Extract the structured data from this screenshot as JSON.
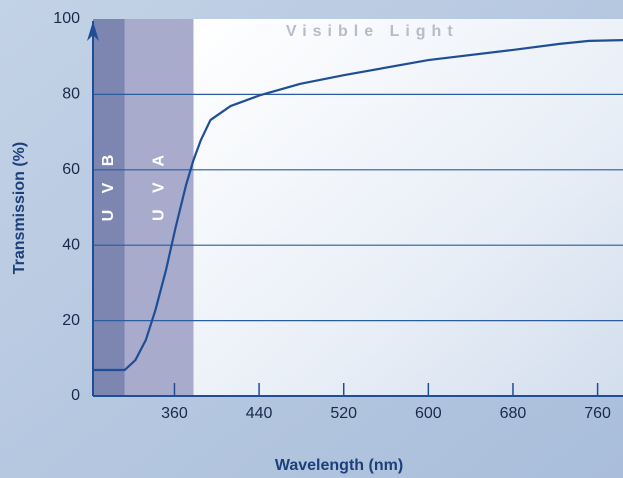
{
  "chart_data": {
    "type": "line",
    "x_label": "Wavelength (nm)",
    "y_label": "Transmission (%)",
    "x": [
      283,
      313,
      323,
      333,
      342,
      352,
      361,
      371,
      378,
      385,
      394,
      413,
      441,
      479,
      520,
      600,
      680,
      724,
      752,
      784
    ],
    "values": [
      6.9,
      6.9,
      9.5,
      14.9,
      22.8,
      33.4,
      44.6,
      56,
      62.6,
      67.9,
      73.2,
      76.9,
      79.8,
      82.8,
      85.1,
      89.1,
      91.8,
      93.4,
      94.2,
      94.4
    ],
    "color": "#1f4e96",
    "regions": [
      {
        "label": "U V B",
        "start": 283,
        "end": 313,
        "color": "#7d86b0"
      },
      {
        "label": "U V A",
        "start": 313,
        "end": 378,
        "color": "#a9abcc"
      },
      {
        "label": "Visible Light",
        "start": 378,
        "end": 784,
        "color": "#ffffff"
      }
    ],
    "xlim": [
      283,
      784
    ],
    "ylim": [
      0,
      100
    ],
    "xticks": [
      360,
      440,
      520,
      600,
      680,
      760
    ],
    "yticks": [
      0,
      20,
      40,
      60,
      80,
      100
    ],
    "grid": true
  }
}
